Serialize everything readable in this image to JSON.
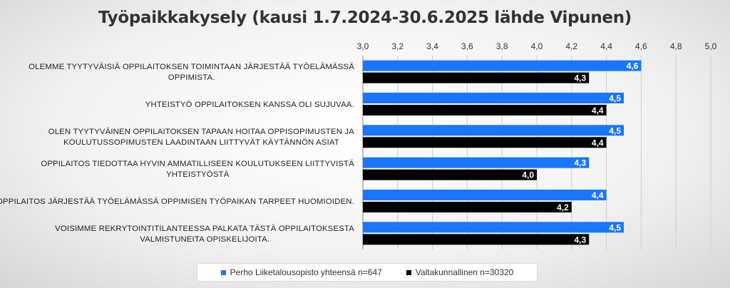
{
  "chart_data": {
    "type": "bar",
    "orientation": "horizontal",
    "title": "Työpaikkakysely (kausi 1.7.2024-30.6.2025 lähde Vipunen)",
    "categories": [
      [
        "OLEMME TYYTYVÄISIÄ OPPILAITOKSEN TOIMINTAAN JÄRJESTÄÄ TYÖELÄMÄSSÄ",
        "OPPIMISTA."
      ],
      [
        "YHTEISTYÖ OPPILAITOKSEN KANSSA OLI SUJUVAA."
      ],
      [
        "OLEN TYYTYVÄINEN OPPILAITOKSEN TAPAAN HOITAA OPPISOPIMUSTEN JA",
        "KOULUTUSSOPIMUSTEN LAADINTAAN LIITTYVÄT KÄYTÄNNÖN ASIAT"
      ],
      [
        "OPPILAITOS TIEDOTTAA HYVIN AMMATILLISEEN KOULUTUKSEEN LIITTYVISTÄ",
        "YHTEISTYÖSTÄ"
      ],
      [
        "OPPILAITOS JÄRJESTÄÄ TYÖELÄMÄSSÄ OPPIMISEN TYÖPAIKAN TARPEET HUOMIOIDEN."
      ],
      [
        "VOISIMME REKRYTOINTITILANTEESSA PALKATA TÄSTÄ OPPILAITOKSESTA",
        "VALMISTUNEITA OPISKELIJOITA."
      ]
    ],
    "series": [
      {
        "name": "Perho Liiketalousopisto yhteensä n=647",
        "color": "#1a75ff",
        "values": [
          4.6,
          4.5,
          4.5,
          4.3,
          4.4,
          4.5
        ],
        "labels": [
          "4,6",
          "4,5",
          "4,5",
          "4,3",
          "4,4",
          "4,5"
        ]
      },
      {
        "name": "Valtakunnallinen n=30320",
        "color": "#000000",
        "values": [
          4.3,
          4.4,
          4.4,
          4.0,
          4.2,
          4.3
        ],
        "labels": [
          "4,3",
          "4,4",
          "4,4",
          "4,0",
          "4,2",
          "4,3"
        ]
      }
    ],
    "xlim": [
      3.0,
      5.0
    ],
    "xticks": [
      3.0,
      3.2,
      3.4,
      3.6,
      3.8,
      4.0,
      4.2,
      4.4,
      4.6,
      4.8,
      5.0
    ],
    "xtick_labels": [
      "3,0",
      "3,2",
      "3,4",
      "3,6",
      "3,8",
      "4,0",
      "4,2",
      "4,4",
      "4,6",
      "4,8",
      "5,0"
    ],
    "axis_position": "top",
    "grid": true,
    "legend_position": "bottom"
  }
}
